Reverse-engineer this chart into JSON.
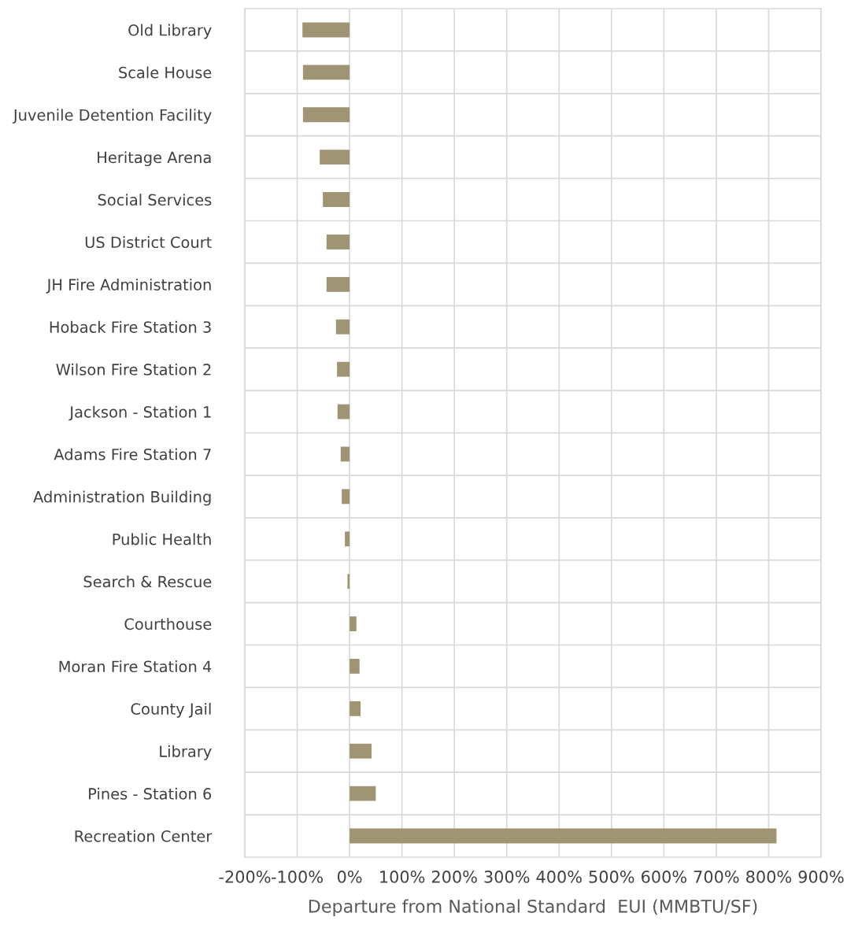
{
  "chart_data": {
    "type": "bar",
    "orientation": "horizontal",
    "xlabel": "Departure from National Standard  EUI (MMBTU/SF)",
    "categories": [
      "Old Library",
      "Scale House",
      "Juvenile Detention Facility",
      "Heritage Arena",
      "Social Services",
      "US District Court",
      "JH Fire Administration",
      "Hoback Fire Station 3",
      "Wilson Fire Station 2",
      "Jackson - Station 1",
      "Adams Fire Station 7",
      "Administration Building",
      "Public Health",
      "Search & Rescue",
      "Courthouse",
      "Moran Fire Station 4",
      "County Jail",
      "Library",
      "Pines - Station 6",
      "Recreation Center"
    ],
    "values": [
      -90,
      -89,
      -89,
      -57,
      -51,
      -44,
      -44,
      -26,
      -24,
      -23,
      -17,
      -15,
      -9,
      -4,
      13,
      19,
      21,
      42,
      50,
      815
    ],
    "color": "#9f9473",
    "xlim": [
      -200,
      900
    ],
    "xticks": [
      {
        "value": -200,
        "label": "-200%"
      },
      {
        "value": -100,
        "label": "-100%"
      },
      {
        "value": 0,
        "label": "0%"
      },
      {
        "value": 100,
        "label": "100%"
      },
      {
        "value": 200,
        "label": "200%"
      },
      {
        "value": 300,
        "label": "300%"
      },
      {
        "value": 400,
        "label": "400%"
      },
      {
        "value": 500,
        "label": "500%"
      },
      {
        "value": 600,
        "label": "600%"
      },
      {
        "value": 700,
        "label": "700%"
      },
      {
        "value": 800,
        "label": "800%"
      },
      {
        "value": 900,
        "label": "900%"
      }
    ],
    "grid": true
  }
}
